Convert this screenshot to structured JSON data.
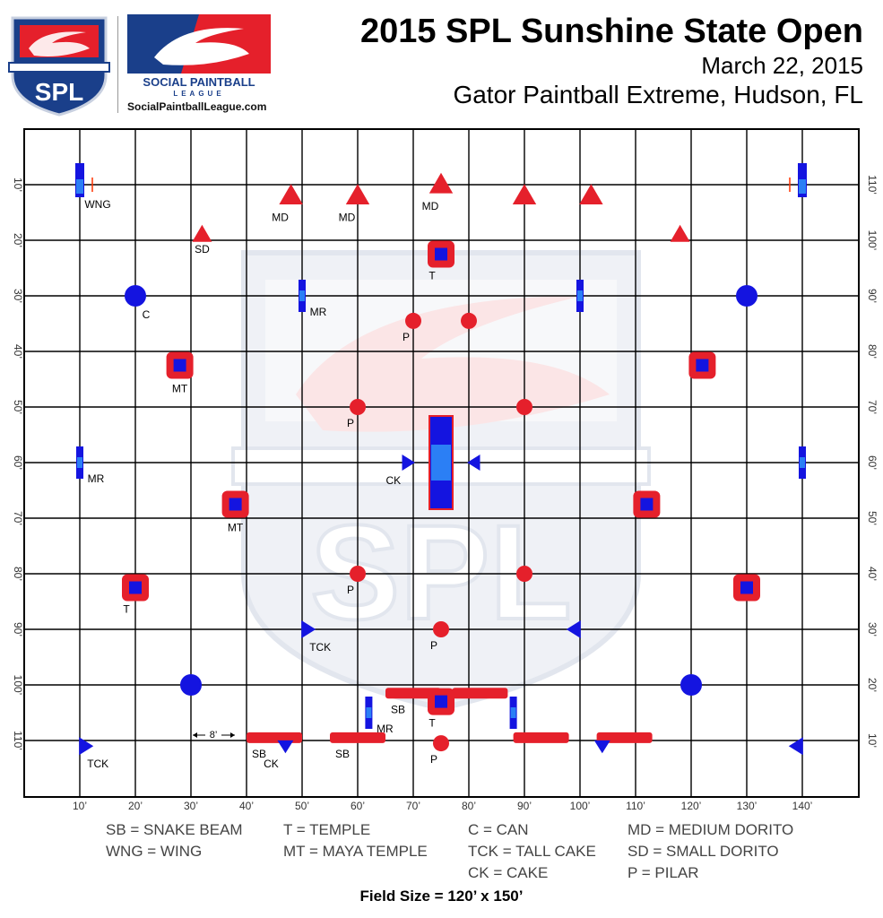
{
  "header": {
    "title": "2015 SPL Sunshine State Open",
    "date": "March 22, 2015",
    "venue": "Gator Paintball Extreme, Hudson, FL",
    "logo_text": "SPL",
    "league_name_line1": "SOCIAL PAINTBALL",
    "league_name_line2": "LEAGUE",
    "url": "SocialPaintballLeague.com"
  },
  "colors": {
    "red": "#e5202b",
    "blue": "#1414e0",
    "light_blue": "#2b7ff5",
    "grid": "#000000",
    "watermark": "#c8d0e0"
  },
  "field": {
    "x_ticks": [
      "10’",
      "20’",
      "30’",
      "40’",
      "50’",
      "60’",
      "70’",
      "80’",
      "90’",
      "100’",
      "110’",
      "120’",
      "130’",
      "140’"
    ],
    "y_ticks_left": [
      "10’",
      "20’",
      "30’",
      "40’",
      "50’",
      "60’",
      "70’",
      "80’",
      "90’",
      "100’",
      "110’"
    ],
    "y_ticks_right": [
      "110’",
      "100’",
      "90’",
      "80’",
      "70’",
      "60’",
      "50’",
      "40’",
      "30’",
      "20’",
      "10’"
    ],
    "measurement_label": "8’",
    "bunkers": [
      {
        "type": "WNG",
        "x": 10,
        "y": 10,
        "label": "WNG"
      },
      {
        "type": "WNG",
        "x": 140,
        "y": 10,
        "label": ""
      },
      {
        "type": "MD",
        "x": 48,
        "y": 12,
        "label": "MD"
      },
      {
        "type": "MD",
        "x": 60,
        "y": 12,
        "label": "MD"
      },
      {
        "type": "MD",
        "x": 75,
        "y": 10,
        "label": "MD"
      },
      {
        "type": "MD",
        "x": 90,
        "y": 12,
        "label": ""
      },
      {
        "type": "MD",
        "x": 102,
        "y": 12,
        "label": ""
      },
      {
        "type": "SD",
        "x": 32,
        "y": 19,
        "label": "SD"
      },
      {
        "type": "SD",
        "x": 118,
        "y": 19,
        "label": ""
      },
      {
        "type": "T",
        "x": 75,
        "y": 22.5,
        "label": "T"
      },
      {
        "type": "C",
        "x": 20,
        "y": 30,
        "label": "C"
      },
      {
        "type": "C",
        "x": 130,
        "y": 30,
        "label": ""
      },
      {
        "type": "MR",
        "x": 50,
        "y": 30,
        "label": "MR"
      },
      {
        "type": "MR",
        "x": 100,
        "y": 30,
        "label": ""
      },
      {
        "type": "P",
        "x": 70,
        "y": 34.5,
        "label": "P"
      },
      {
        "type": "P",
        "x": 80,
        "y": 34.5,
        "label": ""
      },
      {
        "type": "MT",
        "x": 28,
        "y": 42.5,
        "label": "MT"
      },
      {
        "type": "MT",
        "x": 122,
        "y": 42.5,
        "label": ""
      },
      {
        "type": "P",
        "x": 60,
        "y": 50,
        "label": "P"
      },
      {
        "type": "P",
        "x": 90,
        "y": 50,
        "label": ""
      },
      {
        "type": "CK",
        "x": 69,
        "y": 60,
        "label": "CK",
        "dir": "right"
      },
      {
        "type": "CK",
        "x": 81,
        "y": 60,
        "label": "",
        "dir": "left"
      },
      {
        "type": "MR",
        "x": 10,
        "y": 60,
        "label": "MR"
      },
      {
        "type": "MR",
        "x": 140,
        "y": 60,
        "label": ""
      },
      {
        "type": "MT",
        "x": 38,
        "y": 67.5,
        "label": "MT"
      },
      {
        "type": "MT",
        "x": 112,
        "y": 67.5,
        "label": ""
      },
      {
        "type": "P",
        "x": 60,
        "y": 80,
        "label": "P"
      },
      {
        "type": "P",
        "x": 90,
        "y": 80,
        "label": ""
      },
      {
        "type": "T",
        "x": 20,
        "y": 82.5,
        "label": "T"
      },
      {
        "type": "T",
        "x": 130,
        "y": 82.5,
        "label": ""
      },
      {
        "type": "TCK",
        "x": 51,
        "y": 90,
        "label": "TCK",
        "dir": "right"
      },
      {
        "type": "TCK",
        "x": 99,
        "y": 90,
        "label": "",
        "dir": "left"
      },
      {
        "type": "P",
        "x": 75,
        "y": 90,
        "label": "P"
      },
      {
        "type": "C",
        "x": 30,
        "y": 100,
        "label": ""
      },
      {
        "type": "C",
        "x": 120,
        "y": 100,
        "label": ""
      },
      {
        "type": "T",
        "x": 75,
        "y": 103,
        "label": "T"
      },
      {
        "type": "MR",
        "x": 62,
        "y": 105,
        "label": "MR"
      },
      {
        "type": "MR",
        "x": 88,
        "y": 105,
        "label": ""
      },
      {
        "type": "P",
        "x": 75,
        "y": 110.5,
        "label": "P"
      },
      {
        "type": "TCK",
        "x": 11,
        "y": 111,
        "label": "TCK",
        "dir": "right"
      },
      {
        "type": "TCK",
        "x": 139,
        "y": 111,
        "label": "",
        "dir": "left"
      },
      {
        "type": "CK",
        "x": 47,
        "y": 111,
        "label": "CK",
        "dir": "down"
      },
      {
        "type": "CK",
        "x": 104,
        "y": 111,
        "label": "",
        "dir": "down"
      }
    ],
    "snake_beams": [
      {
        "x1": 40,
        "x2": 50,
        "y": 109.5,
        "label": "SB"
      },
      {
        "x1": 55,
        "x2": 65,
        "y": 109.5,
        "label": "SB"
      },
      {
        "x1": 65,
        "x2": 75,
        "y": 101.5,
        "label": "SB"
      },
      {
        "x1": 77,
        "x2": 87,
        "y": 101.5,
        "label": ""
      },
      {
        "x1": 88,
        "x2": 98,
        "y": 109.5,
        "label": ""
      },
      {
        "x1": 103,
        "x2": 113,
        "y": 109.5,
        "label": ""
      }
    ],
    "center_bunker": {
      "x": 75,
      "y": 60,
      "label": ""
    }
  },
  "legend": [
    [
      "SB = SNAKE BEAM",
      "WNG = WING"
    ],
    [
      "T = TEMPLE",
      "MT = MAYA TEMPLE"
    ],
    [
      "C = CAN",
      "TCK = TALL CAKE",
      "CK = CAKE"
    ],
    [
      "MD = MEDIUM DORITO",
      "SD = SMALL DORITO",
      "P = PILAR"
    ]
  ],
  "field_size": "Field Size = 120’ x 150’"
}
